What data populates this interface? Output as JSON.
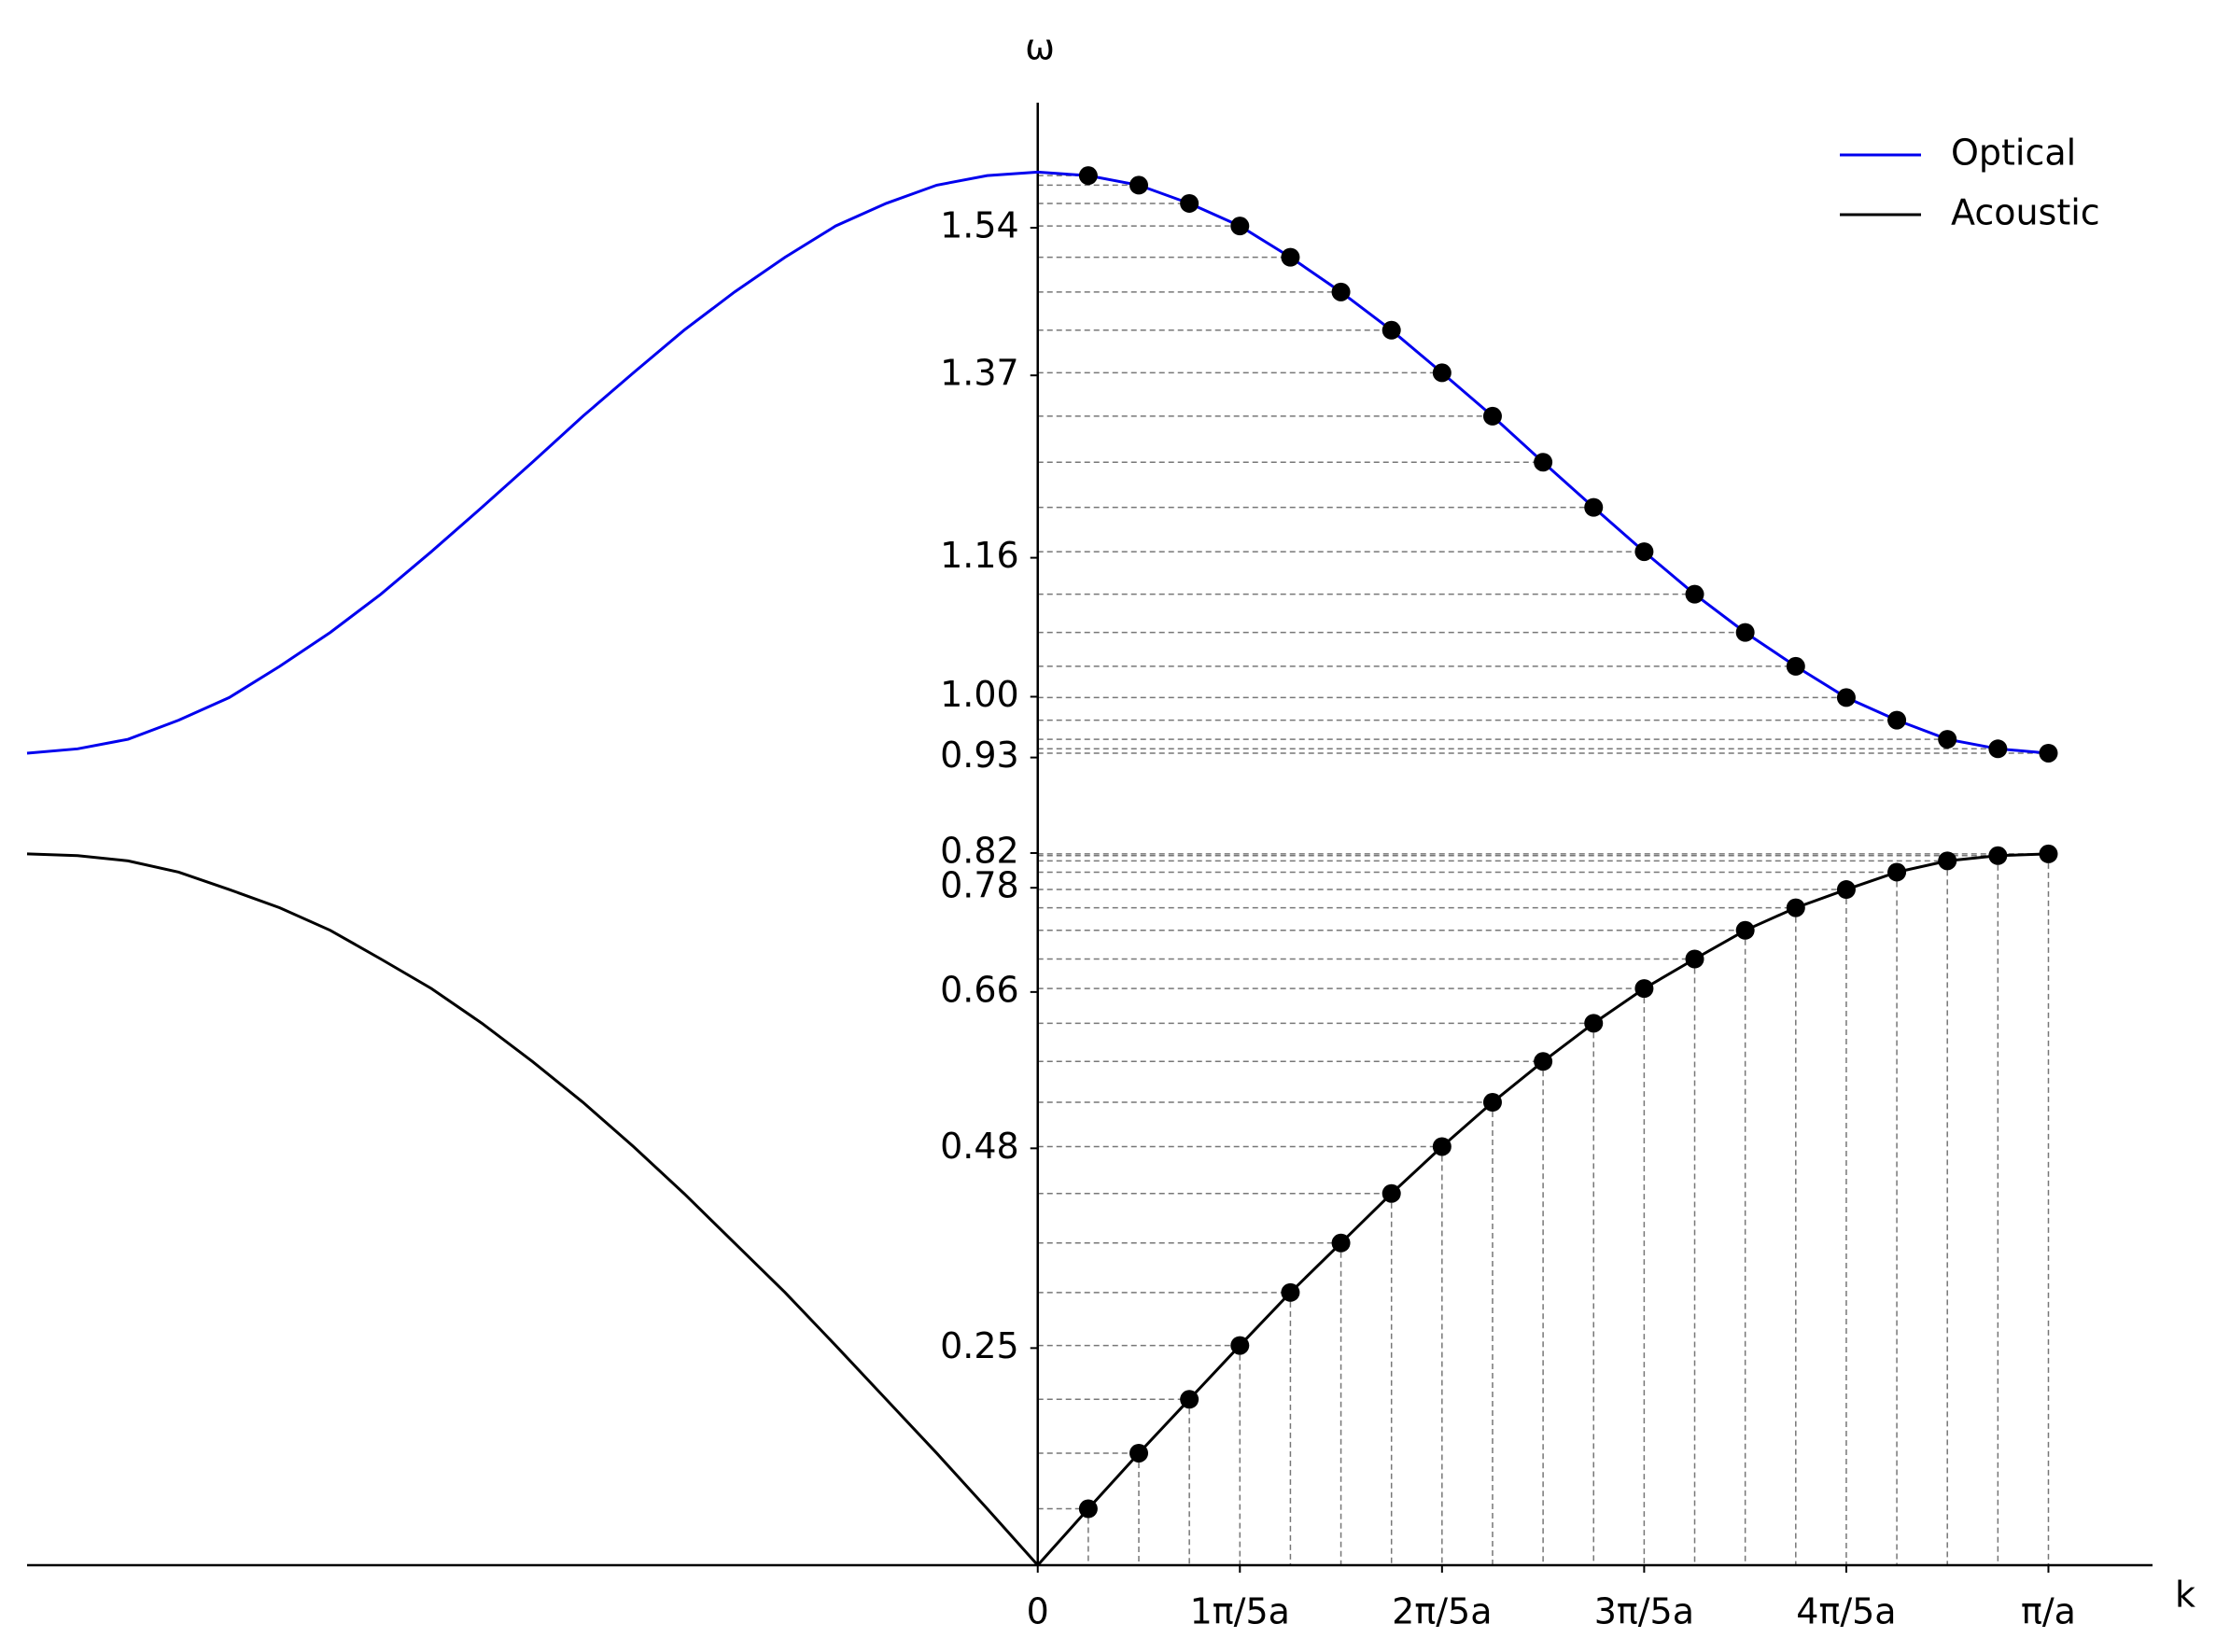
{
  "chart_data": {
    "type": "line",
    "x_label": "k",
    "y_label": "ω",
    "x": [
      -1,
      -0.95,
      -0.9,
      -0.85,
      -0.8,
      -0.75,
      -0.7,
      -0.65,
      -0.6,
      -0.55,
      -0.5,
      -0.45,
      -0.4,
      -0.35,
      -0.3,
      -0.25,
      -0.2,
      -0.15,
      -0.1,
      -0.05,
      0,
      0.05,
      0.1,
      0.15,
      0.2,
      0.25,
      0.3,
      0.35,
      0.4,
      0.45,
      0.5,
      0.55,
      0.6,
      0.65,
      0.7,
      0.75,
      0.8,
      0.85,
      0.9,
      0.95,
      1
    ],
    "series": [
      {
        "name": "Optical",
        "color": "#0000ee",
        "values": [
          0.935,
          0.94,
          0.951,
          0.973,
          0.999,
          1.035,
          1.074,
          1.118,
          1.167,
          1.218,
          1.27,
          1.323,
          1.373,
          1.422,
          1.466,
          1.506,
          1.542,
          1.568,
          1.589,
          1.6,
          1.604,
          1.6,
          1.589,
          1.568,
          1.542,
          1.506,
          1.466,
          1.422,
          1.373,
          1.323,
          1.27,
          1.218,
          1.167,
          1.118,
          1.074,
          1.035,
          0.999,
          0.973,
          0.951,
          0.94,
          0.935
        ]
      },
      {
        "name": "Acoustic",
        "color": "#000000",
        "values": [
          0.819,
          0.817,
          0.811,
          0.798,
          0.778,
          0.757,
          0.731,
          0.698,
          0.664,
          0.624,
          0.58,
          0.533,
          0.482,
          0.428,
          0.371,
          0.314,
          0.253,
          0.191,
          0.129,
          0.065,
          0,
          0.065,
          0.129,
          0.191,
          0.253,
          0.314,
          0.371,
          0.428,
          0.482,
          0.533,
          0.58,
          0.624,
          0.664,
          0.698,
          0.731,
          0.757,
          0.778,
          0.798,
          0.811,
          0.817,
          0.819
        ]
      }
    ],
    "xlim": [
      -1,
      1.103
    ],
    "ylim": [
      0,
      1.684
    ],
    "xticks": [
      {
        "value": 0,
        "label": "0"
      },
      {
        "value": 0.2,
        "label": "1π/5a"
      },
      {
        "value": 0.4,
        "label": "2π/5a"
      },
      {
        "value": 0.6,
        "label": "3π/5a"
      },
      {
        "value": 0.8,
        "label": "4π/5a"
      },
      {
        "value": 1,
        "label": "π/a"
      }
    ],
    "yticks": [
      0.25,
      0.48,
      0.66,
      0.78,
      0.82,
      0.93,
      {
        "value": 1,
        "label": "1.00"
      },
      1.16,
      1.37,
      1.54
    ],
    "legend": "upper right"
  }
}
